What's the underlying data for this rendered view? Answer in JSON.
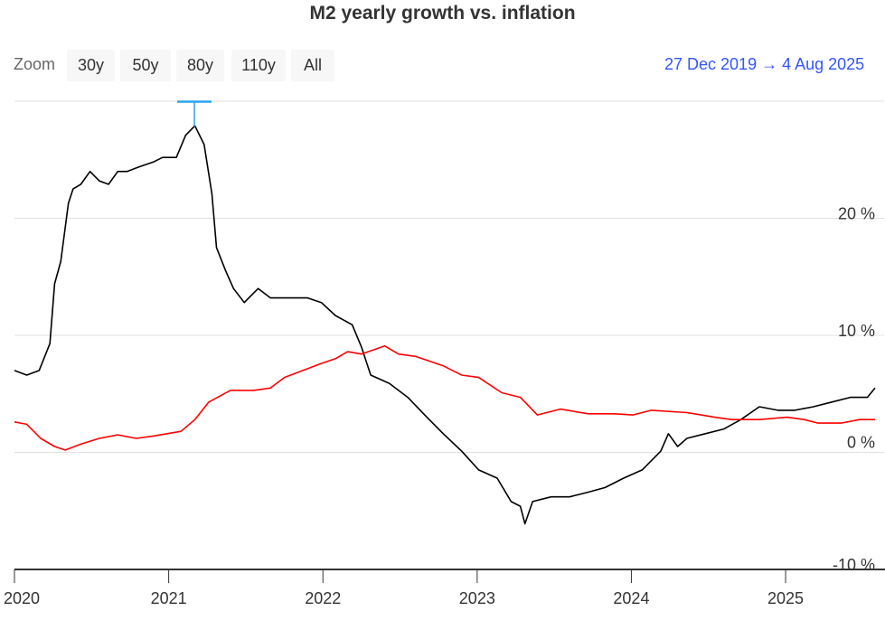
{
  "chart_data": {
    "type": "line",
    "title": "M2 yearly growth vs. inflation",
    "xlabel": "",
    "ylabel": "",
    "x_ticks": [
      "2020",
      "2021",
      "2022",
      "2023",
      "2024",
      "2025"
    ],
    "y_ticks": [
      "20 %",
      "10 %",
      "0 %",
      "-10 %"
    ],
    "xlim": [
      2020.0,
      2025.58
    ],
    "ylim": [
      -10,
      30
    ],
    "grid": true,
    "series": [
      {
        "color": "#000000",
        "x": [
          2020.0,
          2020.08,
          2020.16,
          2020.23,
          2020.26,
          2020.3,
          2020.35,
          2020.38,
          2020.43,
          2020.49,
          2020.55,
          2020.61,
          2020.67,
          2020.73,
          2020.81,
          2020.9,
          2020.96,
          2021.05,
          2021.11,
          2021.17,
          2021.23,
          2021.28,
          2021.31,
          2021.37,
          2021.42,
          2021.49,
          2021.58,
          2021.66,
          2021.78,
          2021.9,
          2021.99,
          2022.08,
          2022.19,
          2022.25,
          2022.31,
          2022.43,
          2022.55,
          2022.66,
          2022.78,
          2022.9,
          2023.01,
          2023.13,
          2023.22,
          2023.28,
          2023.31,
          2023.36,
          2023.48,
          2023.6,
          2023.72,
          2023.83,
          2023.95,
          2024.07,
          2024.19,
          2024.24,
          2024.3,
          2024.36,
          2024.48,
          2024.6,
          2024.71,
          2024.83,
          2024.95,
          2025.06,
          2025.18,
          2025.3,
          2025.42,
          2025.53,
          2025.58
        ],
        "y": [
          7.0,
          6.6,
          7.0,
          9.3,
          14.4,
          16.3,
          21.3,
          22.5,
          22.9,
          24.0,
          23.2,
          22.9,
          24.0,
          24.0,
          24.4,
          24.8,
          25.2,
          25.2,
          27.1,
          27.9,
          26.3,
          22.1,
          17.5,
          15.5,
          14.0,
          12.8,
          14.0,
          13.2,
          13.2,
          13.2,
          12.8,
          11.7,
          10.9,
          9.0,
          6.6,
          5.9,
          4.7,
          3.2,
          1.6,
          0.1,
          -1.5,
          -2.2,
          -4.2,
          -4.6,
          -6.1,
          -4.2,
          -3.8,
          -3.8,
          -3.4,
          -3.0,
          -2.2,
          -1.5,
          0.1,
          1.6,
          0.5,
          1.2,
          1.6,
          2.0,
          2.8,
          3.9,
          3.6,
          3.6,
          3.9,
          4.3,
          4.7,
          4.7,
          5.5
        ]
      },
      {
        "color": "#ff0000",
        "x": [
          2020.0,
          2020.08,
          2020.17,
          2020.26,
          2020.33,
          2020.43,
          2020.55,
          2020.67,
          2020.79,
          2020.9,
          2021.08,
          2021.17,
          2021.26,
          2021.4,
          2021.55,
          2021.66,
          2021.75,
          2021.87,
          2021.99,
          2022.08,
          2022.16,
          2022.25,
          2022.4,
          2022.49,
          2022.6,
          2022.78,
          2022.9,
          2023.01,
          2023.16,
          2023.28,
          2023.39,
          2023.54,
          2023.72,
          2023.89,
          2024.01,
          2024.13,
          2024.36,
          2024.54,
          2024.65,
          2024.83,
          2025.01,
          2025.12,
          2025.21,
          2025.36,
          2025.48,
          2025.58
        ],
        "y": [
          2.6,
          2.4,
          1.2,
          0.5,
          0.2,
          0.7,
          1.2,
          1.5,
          1.2,
          1.4,
          1.8,
          2.8,
          4.3,
          5.3,
          5.3,
          5.5,
          6.4,
          7.0,
          7.6,
          8.0,
          8.6,
          8.4,
          9.1,
          8.4,
          8.2,
          7.4,
          6.6,
          6.4,
          5.1,
          4.7,
          3.2,
          3.7,
          3.3,
          3.3,
          3.2,
          3.6,
          3.4,
          3.0,
          2.8,
          2.8,
          3.0,
          2.8,
          2.5,
          2.5,
          2.8,
          2.8
        ]
      }
    ]
  },
  "zoom": {
    "label": "Zoom",
    "buttons": [
      "30y",
      "50y",
      "80y",
      "110y",
      "All"
    ]
  },
  "range": {
    "from": "27 Dec 2019",
    "to": "4 Aug 2025",
    "separator": "→"
  }
}
